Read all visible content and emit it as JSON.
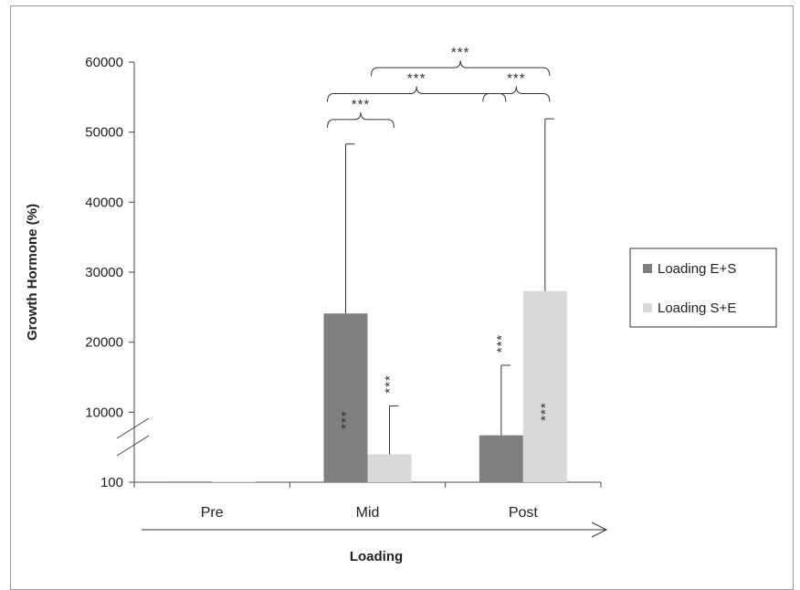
{
  "chart_data": {
    "type": "bar",
    "title": "",
    "ylabel": "Growth Hormone  (%)",
    "xlabel": "Loading",
    "ylim": [
      0,
      60000
    ],
    "y_axis_break": true,
    "yticks": [
      {
        "value": 0,
        "label": "100"
      },
      {
        "value": 10000,
        "label": "10000"
      },
      {
        "value": 20000,
        "label": "20000"
      },
      {
        "value": 30000,
        "label": "30000"
      },
      {
        "value": 40000,
        "label": "40000"
      },
      {
        "value": 50000,
        "label": "50000"
      },
      {
        "value": 60000,
        "label": "60000"
      }
    ],
    "categories": [
      "Pre",
      "Mid",
      "Post"
    ],
    "series": [
      {
        "name": "Loading E+S",
        "color": "#7f7f7f",
        "values": [
          100,
          24100,
          6700
        ],
        "error_plus": [
          0,
          24200,
          10000
        ]
      },
      {
        "name": "Loading S+E",
        "color": "#d9d9d9",
        "values": [
          100,
          4000,
          27300
        ],
        "error_plus": [
          0,
          6900,
          24600
        ]
      }
    ],
    "bar_annotations": [
      {
        "category": "Mid",
        "series": 0,
        "text": "***",
        "placement": "inside"
      },
      {
        "category": "Mid",
        "series": 1,
        "text": "***",
        "placement": "above"
      },
      {
        "category": "Post",
        "series": 0,
        "text": "***",
        "placement": "above"
      },
      {
        "category": "Post",
        "series": 1,
        "text": "***",
        "placement": "inside"
      }
    ],
    "brackets": [
      {
        "from_category": "Mid",
        "from_series": 0,
        "to_category": "Mid",
        "to_series": 1,
        "text": "***",
        "y": 51800
      },
      {
        "from_category": "Mid",
        "from_series": 0,
        "to_category": "Post",
        "to_series": 0,
        "text": "***",
        "y": 55500
      },
      {
        "from_category": "Post",
        "from_series": 0,
        "to_category": "Post",
        "to_series": 1,
        "text": "***",
        "y": 55500
      },
      {
        "from_category": "Mid",
        "from_series": 1,
        "to_category": "Post",
        "to_series": 1,
        "text": "***",
        "y": 59200
      }
    ],
    "legend_position": "right",
    "grid": false
  }
}
